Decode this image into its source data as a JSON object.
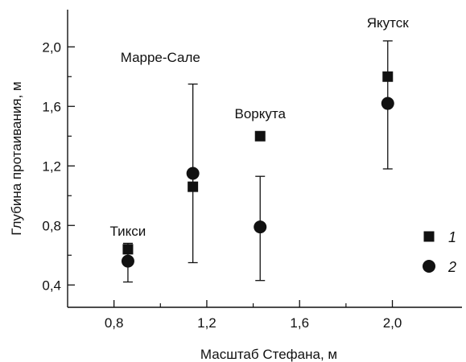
{
  "chart_data": {
    "type": "scatter",
    "title": "",
    "xlabel": "Масштаб Стефана, м",
    "ylabel": "Глубина протаивания, м",
    "xlim": [
      0.6,
      2.3
    ],
    "ylim": [
      0.25,
      2.25
    ],
    "x_ticks": [
      0.8,
      1.2,
      1.6,
      2.0
    ],
    "x_tick_labels": [
      "0,8",
      "1,2",
      "1,6",
      "2,0"
    ],
    "x_minor_ticks": [
      1.0,
      1.4,
      1.8
    ],
    "y_ticks": [
      0.4,
      0.8,
      1.2,
      1.6,
      2.0
    ],
    "y_tick_labels": [
      "0,4",
      "0,8",
      "1,2",
      "1,6",
      "2,0"
    ],
    "y_minor_ticks": [
      0.6,
      1.0,
      1.4,
      1.8
    ],
    "grid": false,
    "legend_position": "right",
    "series": [
      {
        "name": "1",
        "marker": "square",
        "points": [
          {
            "station": "Тикси",
            "x": 0.86,
            "y": 0.64
          },
          {
            "station": "Марре-Сале",
            "x": 1.14,
            "y": 1.06
          },
          {
            "station": "Воркута",
            "x": 1.43,
            "y": 1.4
          },
          {
            "station": "Якутск",
            "x": 1.98,
            "y": 1.8
          }
        ]
      },
      {
        "name": "2",
        "marker": "circle",
        "points": [
          {
            "station": "Тикси",
            "x": 0.86,
            "y": 0.56,
            "err_low": 0.42,
            "err_high": 0.68
          },
          {
            "station": "Марре-Сале",
            "x": 1.14,
            "y": 1.15,
            "err_low": 0.55,
            "err_high": 1.75
          },
          {
            "station": "Воркута",
            "x": 1.43,
            "y": 0.79,
            "err_low": 0.43,
            "err_high": 1.13
          },
          {
            "station": "Якутск",
            "x": 1.98,
            "y": 1.62,
            "err_low": 1.18,
            "err_high": 2.04
          }
        ]
      }
    ],
    "stations": [
      "Тикси",
      "Марре-Сале",
      "Воркута",
      "Якутск"
    ]
  }
}
